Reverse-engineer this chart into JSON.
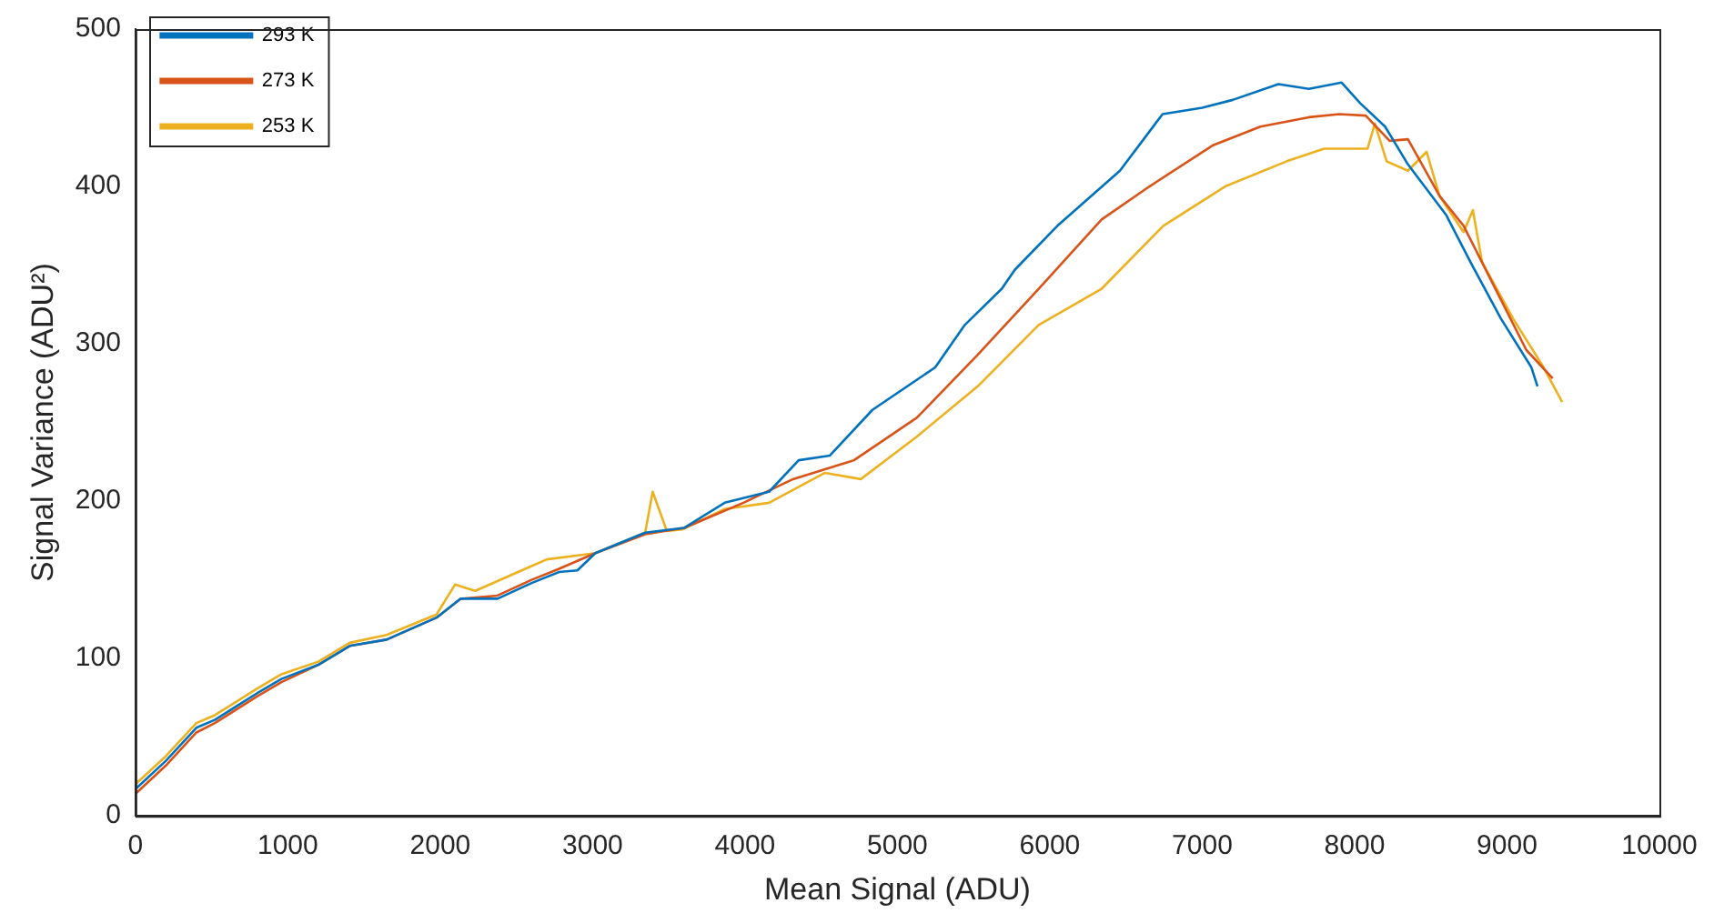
{
  "chart_data": {
    "type": "line",
    "xlabel": "Mean Signal (ADU)",
    "ylabel": "Signal Variance (ADU²)",
    "xlim": [
      0,
      10000
    ],
    "xticks": [
      0,
      1000,
      2000,
      3000,
      4000,
      5000,
      6000,
      7000,
      8000,
      9000,
      10000
    ],
    "ylim": [
      0,
      500
    ],
    "yticks": [
      0,
      100,
      200,
      300,
      400,
      500
    ],
    "grid": false,
    "legend": "top left",
    "marker": "none",
    "line_style": "solid",
    "series": [
      {
        "name": "293 K",
        "color": "#0072bd",
        "x": [
          0,
          200,
          400,
          521,
          800,
          958,
          1200,
          1406,
          1648,
          1976,
          2133,
          2376,
          2600,
          2780,
          2900,
          3018,
          3345,
          3600,
          3867,
          4158,
          4352,
          4557,
          4836,
          5248,
          5442,
          5685,
          5770,
          6050,
          6460,
          6740,
          7000,
          7200,
          7500,
          7700,
          7915,
          8036,
          8200,
          8350,
          8600,
          8760,
          8960,
          9160,
          9200
        ],
        "values": [
          17,
          35,
          56,
          61,
          78,
          87,
          96,
          108,
          112,
          126,
          138,
          138,
          148,
          155,
          156,
          167,
          180,
          183,
          199,
          206,
          226,
          229,
          258,
          285,
          312,
          335,
          347,
          375,
          410,
          446,
          450,
          455,
          465,
          462,
          466,
          453,
          438,
          414,
          382,
          352,
          316,
          285,
          273
        ]
      },
      {
        "name": "273 K",
        "color": "#d95319",
        "x": [
          0,
          200,
          400,
          521,
          800,
          958,
          1200,
          1406,
          1648,
          1976,
          2133,
          2376,
          2600,
          2780,
          3018,
          3345,
          3600,
          3990,
          4315,
          4715,
          5127,
          5527,
          5927,
          6340,
          6654,
          7067,
          7382,
          7700,
          7900,
          8073,
          8230,
          8350,
          8557,
          8715,
          8960,
          9127,
          9300
        ],
        "values": [
          14,
          32,
          53,
          59,
          76,
          85,
          96,
          108,
          112,
          126,
          138,
          140,
          150,
          157,
          167,
          179,
          183,
          199,
          214,
          226,
          253,
          293,
          335,
          379,
          400,
          426,
          438,
          444,
          446,
          445,
          429,
          430,
          394,
          375,
          328,
          296,
          278
        ]
      },
      {
        "name": "253 K",
        "color": "#edb120",
        "x": [
          0,
          200,
          400,
          521,
          800,
          958,
          1200,
          1406,
          1648,
          1976,
          2097,
          2230,
          2582,
          2700,
          2940,
          3018,
          3345,
          3394,
          3487,
          3588,
          3867,
          4158,
          4525,
          4760,
          5127,
          5527,
          5927,
          6340,
          6745,
          7150,
          7555,
          7800,
          8085,
          8133,
          8210,
          8350,
          8472,
          8557,
          8715,
          8776,
          8836,
          9040,
          9240,
          9362
        ],
        "values": [
          20,
          38,
          59,
          64,
          81,
          90,
          98,
          110,
          115,
          128,
          147,
          143,
          158,
          163,
          166,
          167,
          180,
          206,
          181,
          182,
          195,
          199,
          218,
          214,
          241,
          273,
          312,
          335,
          375,
          400,
          416,
          424,
          424,
          440,
          416,
          410,
          422,
          394,
          371,
          385,
          352,
          316,
          285,
          263
        ]
      }
    ]
  }
}
